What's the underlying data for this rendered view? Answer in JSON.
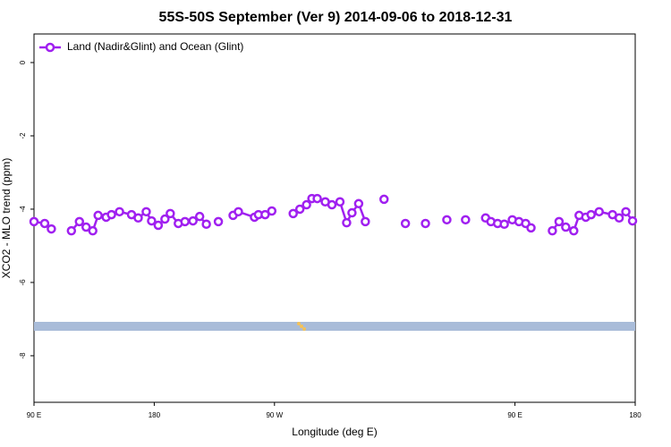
{
  "chart_data": {
    "type": "line",
    "title": "55S-50S September (Ver 9)   2014-09-06 to 2018-12-31",
    "xlabel": "Longitude (deg E)",
    "ylabel": "XCO2 - MLO trend (ppm)",
    "xlim": [
      90,
      540
    ],
    "ylim": [
      -9.27,
      0.78
    ],
    "xticks": [
      {
        "value": 90,
        "label": "90 E"
      },
      180,
      {
        "value": 270,
        "label": "90 W"
      },
      {
        "value": 450,
        "label": "90 E"
      },
      {
        "value": 540,
        "label": "180"
      }
    ],
    "yticks": [
      0,
      -2,
      -4,
      -6,
      -8
    ],
    "legend": "top-left",
    "series": [
      {
        "name": "Land (Nadir&Glint) and Ocean (Glint)",
        "color": "#a020f0",
        "x": [
          90,
          98,
          103,
          null,
          118,
          124,
          129,
          134,
          138,
          144,
          148,
          154,
          163,
          168,
          174,
          178,
          183,
          188,
          192,
          198,
          203,
          209,
          214,
          219,
          null,
          228,
          null,
          239,
          243,
          255,
          258,
          263,
          268,
          null,
          284,
          289,
          294,
          298,
          302,
          308,
          313,
          319,
          324,
          328,
          333,
          338,
          null,
          352,
          null,
          368,
          null,
          383,
          null,
          399,
          null,
          413,
          null,
          428,
          432,
          437,
          442,
          448,
          453,
          458,
          462,
          null,
          478,
          483,
          488,
          494,
          498,
          503,
          507,
          513,
          523,
          528,
          533,
          538
        ],
        "values": [
          -4.34,
          -4.39,
          -4.54,
          null,
          -4.59,
          -4.34,
          -4.49,
          -4.59,
          -4.17,
          -4.22,
          -4.15,
          -4.07,
          -4.15,
          -4.24,
          -4.07,
          -4.32,
          -4.44,
          -4.27,
          -4.12,
          -4.39,
          -4.34,
          -4.32,
          -4.2,
          -4.41,
          null,
          -4.34,
          null,
          -4.17,
          -4.07,
          -4.22,
          -4.15,
          -4.15,
          -4.05,
          null,
          -4.12,
          -4.0,
          -3.88,
          -3.71,
          -3.71,
          -3.8,
          -3.88,
          -3.8,
          -4.37,
          -4.1,
          -3.85,
          -4.34,
          null,
          -3.73,
          null,
          -4.39,
          null,
          -4.39,
          null,
          -4.29,
          null,
          -4.29,
          null,
          -4.24,
          -4.34,
          -4.39,
          -4.41,
          -4.29,
          -4.34,
          -4.39,
          -4.51,
          null,
          -4.59,
          -4.34,
          -4.49,
          -4.59,
          -4.17,
          -4.22,
          -4.15,
          -4.07,
          -4.15,
          -4.24,
          -4.07,
          -4.32
        ]
      }
    ]
  }
}
